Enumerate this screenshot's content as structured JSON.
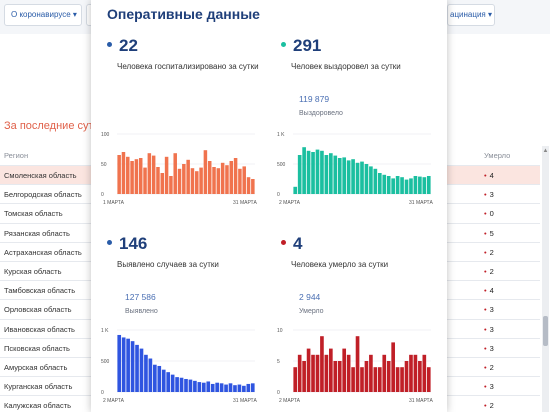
{
  "background": {
    "tabs": [
      "О коронавирусе ▾",
      "М",
      "ацинация ▾"
    ],
    "section_title": "За последние сутки",
    "columns": {
      "region": "Регион",
      "deaths": "Умерло"
    },
    "rows": [
      {
        "region": "Смоленская область",
        "deaths": "4"
      },
      {
        "region": "Белгородская область",
        "deaths": "3"
      },
      {
        "region": "Томская область",
        "deaths": "0"
      },
      {
        "region": "Рязанская область",
        "deaths": "5"
      },
      {
        "region": "Астраханская область",
        "deaths": "2"
      },
      {
        "region": "Курская область",
        "deaths": "2"
      },
      {
        "region": "Тамбовская область",
        "deaths": "4"
      },
      {
        "region": "Орловская область",
        "deaths": "3"
      },
      {
        "region": "Ивановская область",
        "deaths": "3"
      },
      {
        "region": "Псковская область",
        "deaths": "3"
      },
      {
        "region": "Амурская область",
        "deaths": "2"
      },
      {
        "region": "Курганская область",
        "deaths": "3"
      },
      {
        "region": "Калужская область",
        "deaths": "2"
      }
    ]
  },
  "modal": {
    "title": "Оперативные данные",
    "stats": [
      {
        "value": "22",
        "desc": "Человека госпитализировано за сутки",
        "color": "#2a5ca8"
      },
      {
        "value": "291",
        "desc": "Человек выздоровел за сутки",
        "total": "119 879",
        "total_label": "Выздоровело",
        "color": "#1bbfa0"
      },
      {
        "value": "146",
        "desc": "Выявлено случаев за сутки",
        "total": "127 586",
        "total_label": "Выявлено",
        "color": "#2a5ca8"
      },
      {
        "value": "4",
        "desc": "Человека умерло за сутки",
        "total": "2 944",
        "total_label": "Умерло",
        "color": "#c01f27"
      }
    ]
  },
  "chart_data": [
    {
      "type": "bar",
      "color": "#f0734e",
      "y_ticks": [
        "100",
        "50",
        "0"
      ],
      "ylim": [
        0,
        100
      ],
      "x_start_label": "1 МАРТА",
      "x_end_label": "31 МАРТА",
      "values": [
        65,
        70,
        62,
        55,
        58,
        60,
        44,
        68,
        64,
        45,
        35,
        62,
        30,
        68,
        42,
        50,
        57,
        43,
        38,
        44,
        73,
        55,
        45,
        43,
        52,
        48,
        55,
        60,
        42,
        46,
        28,
        25
      ]
    },
    {
      "type": "bar",
      "color": "#1bbfa0",
      "y_ticks": [
        "1 K",
        "500",
        "0"
      ],
      "ylim": [
        0,
        1000
      ],
      "x_start_label": "2 МАРТА",
      "x_end_label": "31 МАРТА",
      "values": [
        120,
        650,
        780,
        720,
        700,
        740,
        720,
        650,
        680,
        640,
        600,
        610,
        560,
        580,
        520,
        540,
        500,
        460,
        420,
        350,
        320,
        300,
        260,
        300,
        280,
        240,
        260,
        300,
        290,
        280,
        300
      ]
    },
    {
      "type": "bar",
      "color": "#2f55e0",
      "y_ticks": [
        "1 K",
        "500",
        "0"
      ],
      "ylim": [
        0,
        1000
      ],
      "x_start_label": "2 МАРТА",
      "x_end_label": "31 МАРТА",
      "values": [
        920,
        880,
        860,
        820,
        760,
        700,
        600,
        540,
        440,
        420,
        360,
        320,
        280,
        240,
        230,
        210,
        200,
        180,
        160,
        150,
        170,
        130,
        150,
        140,
        120,
        140,
        110,
        120,
        100,
        130,
        140
      ]
    },
    {
      "type": "bar",
      "color": "#c01f27",
      "y_ticks": [
        "10",
        "5",
        "0"
      ],
      "ylim": [
        0,
        10
      ],
      "x_start_label": "2 МАРТА",
      "x_end_label": "31 МАРТА",
      "values": [
        4,
        6,
        5,
        7,
        6,
        6,
        9,
        6,
        7,
        5,
        5,
        7,
        6,
        4,
        9,
        4,
        5,
        6,
        4,
        4,
        6,
        5,
        8,
        4,
        4,
        5,
        6,
        6,
        5,
        6,
        4
      ]
    }
  ]
}
